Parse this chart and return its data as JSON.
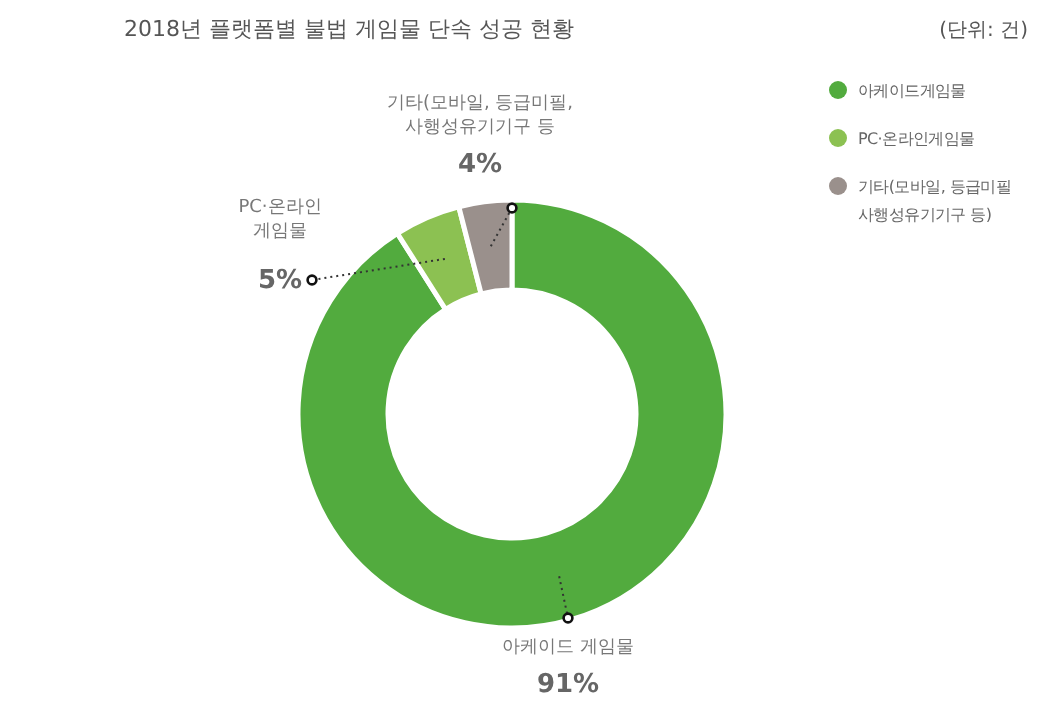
{
  "chart_data": {
    "type": "donut",
    "title": "2018년 플랫폼별 불법 게임물 단속 성공 현황",
    "subtitle": "(단위: 건)",
    "categories": [
      "아케이드게임물",
      "PC·온라인게임물",
      "기타(모바일, 등급미필\n사행성유기기구 등)"
    ],
    "values": [
      91,
      5,
      4
    ],
    "colors": [
      "#52ab3e",
      "#8cc152",
      "#9a908c"
    ],
    "value_labels": [
      "91%",
      "5%",
      "4%"
    ],
    "legend": "right",
    "annotations": [
      {
        "text": "아케이드 게임물",
        "x": "아케이드게임물"
      },
      {
        "text": "PC·온라인\n게임물",
        "x": "PC·온라인게임물"
      },
      {
        "text": "기타(모바일, 등급미필,\n사행성유기기구 등",
        "x": "기타(모바일, 등급미필\n사행성유기기구 등)"
      }
    ]
  }
}
